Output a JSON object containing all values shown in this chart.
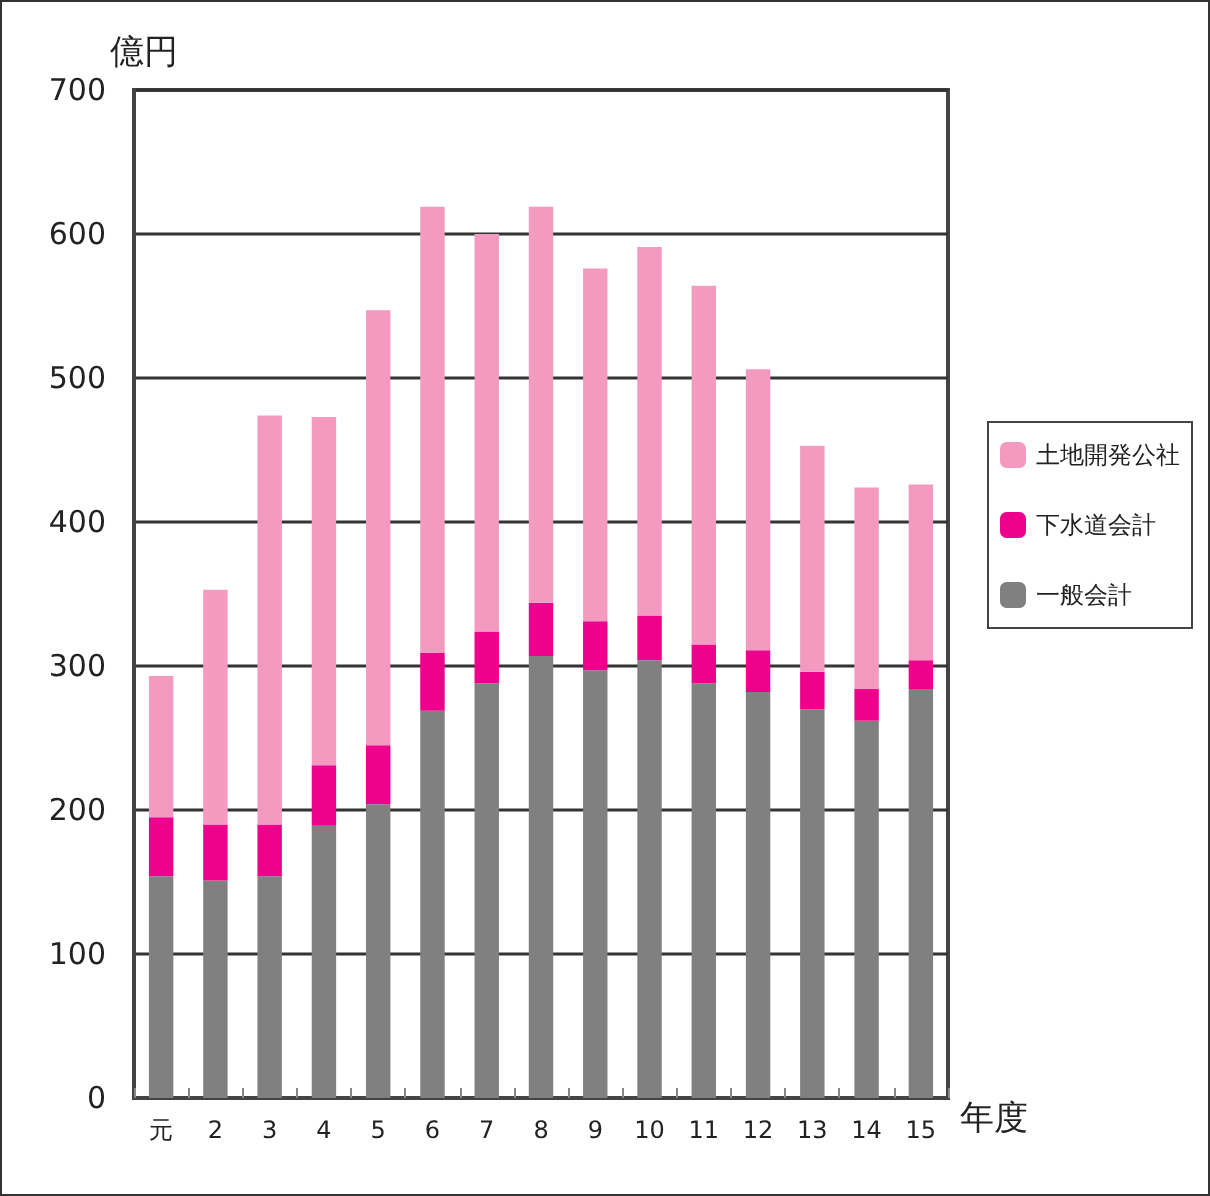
{
  "chart_data": {
    "type": "bar",
    "stacked": true,
    "ylabel": "億円",
    "xlabel": "年度",
    "categories": [
      "元",
      "2",
      "3",
      "4",
      "5",
      "6",
      "7",
      "8",
      "9",
      "10",
      "11",
      "12",
      "13",
      "14",
      "15"
    ],
    "series": [
      {
        "name": "一般会計",
        "color": "#808080",
        "values": [
          154,
          151,
          154,
          189,
          204,
          269,
          288,
          307,
          297,
          304,
          288,
          282,
          270,
          262,
          284
        ]
      },
      {
        "name": "下水道会計",
        "color": "#ec008c",
        "values": [
          41,
          39,
          36,
          42,
          41,
          40,
          36,
          37,
          34,
          31,
          27,
          29,
          26,
          22,
          20
        ]
      },
      {
        "name": "土地開発公社",
        "color": "#f49ac1",
        "values": [
          98,
          163,
          284,
          242,
          302,
          310,
          276,
          275,
          245,
          256,
          249,
          195,
          157,
          140,
          122
        ]
      }
    ],
    "ylim": [
      0,
      700
    ],
    "yticks": [
      0,
      100,
      200,
      300,
      400,
      500,
      600,
      700
    ],
    "grid": "y",
    "legend": "right"
  }
}
